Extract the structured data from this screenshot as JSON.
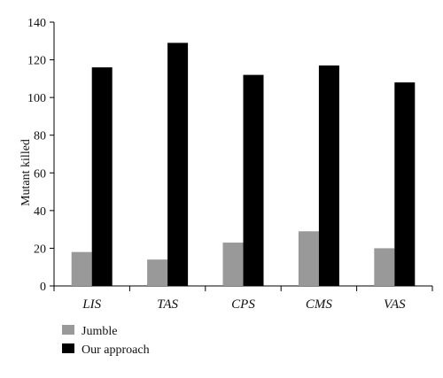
{
  "chart_data": {
    "type": "bar",
    "title": "",
    "xlabel": "",
    "ylabel": "Mutant killed",
    "ylim": [
      0,
      140
    ],
    "yticks": [
      0,
      20,
      40,
      60,
      80,
      100,
      120,
      140
    ],
    "grid": false,
    "legend_position": "bottom-left",
    "categories": [
      "LIS",
      "TAS",
      "CPS",
      "CMS",
      "VAS"
    ],
    "series": [
      {
        "name": "Jumble",
        "color": "#999999",
        "values": [
          18,
          14,
          23,
          29,
          20
        ]
      },
      {
        "name": "Our approach",
        "color": "#000000",
        "values": [
          116,
          129,
          112,
          117,
          108
        ]
      }
    ]
  }
}
